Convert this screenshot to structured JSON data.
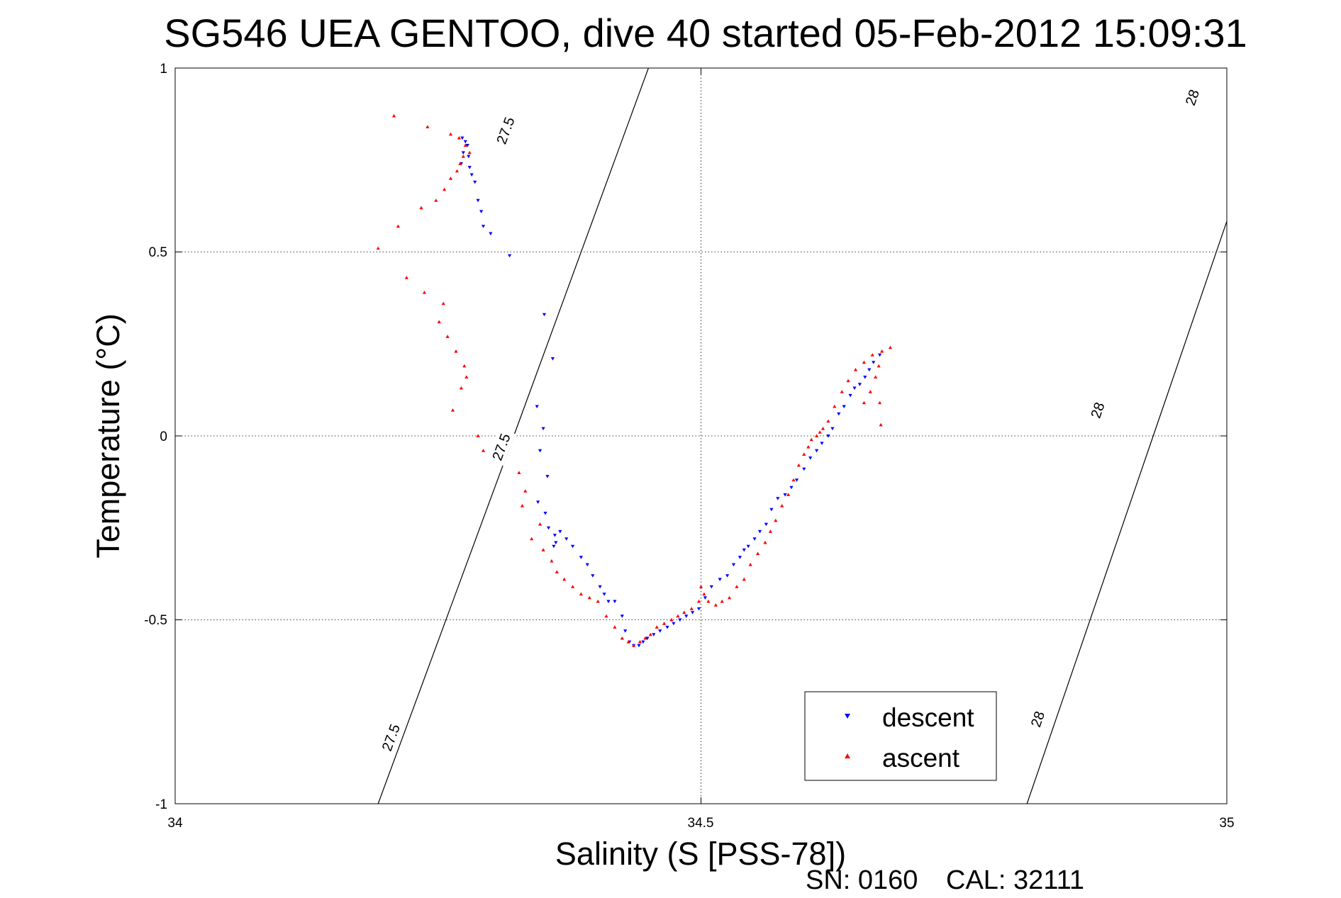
{
  "chart_data": {
    "type": "scatter",
    "title": "SG546 UEA GENTOO, dive 40 started 05-Feb-2012 15:09:31",
    "xlabel": "Salinity (S [PSS-78])",
    "ylabel": "Temperature (°C)",
    "xlim": [
      34,
      35
    ],
    "ylim": [
      -1,
      1
    ],
    "x_ticks": [
      34,
      34.5,
      35
    ],
    "x_tick_labels": [
      "34",
      "34.5",
      "35"
    ],
    "y_ticks": [
      1,
      0.5,
      0,
      -0.5,
      -1
    ],
    "y_tick_labels": [
      "1",
      "0.5",
      "0",
      "-0.5",
      "-1"
    ],
    "grid": true,
    "legend_position": "bottom-right",
    "legend": [
      {
        "label": "descent",
        "color": "#0000ff",
        "marker": "down-triangle"
      },
      {
        "label": "ascent",
        "color": "#ff0000",
        "marker": "up-triangle"
      }
    ],
    "contours": [
      {
        "level": "27.5",
        "points": [
          [
            34.193,
            -1.0
          ],
          [
            34.322,
            0.0
          ],
          [
            34.322,
            0.0
          ],
          [
            34.45,
            1.0
          ]
        ]
      },
      {
        "level": "28",
        "points": [
          [
            34.81,
            -1.0
          ],
          [
            34.93,
            0.0
          ],
          [
            34.93,
            0.0
          ],
          [
            35.05,
            1.0
          ]
        ]
      }
    ],
    "contour_labels": [
      {
        "text": "27.5",
        "s": 34.31,
        "t": -0.03
      },
      {
        "text": "27.5",
        "s": 34.314,
        "t": 0.83
      },
      {
        "text": "27.5",
        "s": 34.205,
        "t": -0.82
      },
      {
        "text": "28",
        "s": 34.877,
        "t": 0.07
      },
      {
        "text": "28",
        "s": 34.967,
        "t": 0.92
      },
      {
        "text": "28",
        "s": 34.82,
        "t": -0.77
      }
    ],
    "series": [
      {
        "name": "descent",
        "color": "#0000ff",
        "marker": "down-triangle",
        "x": [
          34.273,
          34.276,
          34.278,
          34.274,
          34.279,
          34.272,
          34.28,
          34.282,
          34.285,
          34.288,
          34.291,
          34.293,
          34.3,
          34.318,
          34.351,
          34.359,
          34.344,
          34.35,
          34.347,
          34.354,
          34.345,
          34.352,
          34.355,
          34.361,
          34.362,
          34.36,
          34.366,
          34.372,
          34.378,
          34.386,
          34.392,
          34.397,
          34.404,
          34.408,
          34.412,
          34.418,
          34.425,
          34.428,
          34.432,
          34.436,
          34.441,
          34.445,
          34.449,
          34.455,
          34.461,
          34.468,
          34.474,
          34.48,
          34.486,
          34.492,
          34.498,
          34.504,
          34.51,
          34.518,
          34.525,
          34.531,
          34.537,
          34.541,
          34.545,
          34.551,
          34.556,
          34.562,
          34.567,
          34.573,
          34.58,
          34.586,
          34.591,
          34.598,
          34.604,
          34.61,
          34.615,
          34.621,
          34.625,
          34.631,
          34.636,
          34.642,
          34.646,
          34.651,
          34.656,
          34.66,
          34.664,
          34.67
        ],
        "y": [
          0.81,
          0.8,
          0.79,
          0.77,
          0.76,
          0.74,
          0.73,
          0.71,
          0.69,
          0.64,
          0.61,
          0.57,
          0.55,
          0.49,
          0.33,
          0.21,
          0.08,
          0.02,
          -0.04,
          -0.11,
          -0.18,
          -0.21,
          -0.25,
          -0.27,
          -0.29,
          -0.3,
          -0.26,
          -0.28,
          -0.3,
          -0.33,
          -0.35,
          -0.38,
          -0.41,
          -0.43,
          -0.45,
          -0.45,
          -0.49,
          -0.53,
          -0.56,
          -0.57,
          -0.57,
          -0.56,
          -0.55,
          -0.54,
          -0.53,
          -0.52,
          -0.51,
          -0.5,
          -0.49,
          -0.48,
          -0.47,
          -0.44,
          -0.41,
          -0.39,
          -0.38,
          -0.35,
          -0.33,
          -0.31,
          -0.3,
          -0.28,
          -0.26,
          -0.24,
          -0.2,
          -0.17,
          -0.16,
          -0.14,
          -0.12,
          -0.09,
          -0.06,
          -0.04,
          -0.02,
          0.0,
          0.02,
          0.06,
          0.08,
          0.11,
          0.13,
          0.14,
          0.16,
          0.18,
          0.2,
          0.22
        ]
      },
      {
        "name": "ascent",
        "color": "#ff0000",
        "marker": "up-triangle",
        "x": [
          34.208,
          34.24,
          34.262,
          34.27,
          34.276,
          34.28,
          34.274,
          34.271,
          34.268,
          34.262,
          34.256,
          34.248,
          34.234,
          34.212,
          34.193,
          34.22,
          34.237,
          34.255,
          34.251,
          34.259,
          34.267,
          34.275,
          34.277,
          34.272,
          34.264,
          34.288,
          34.293,
          34.327,
          34.333,
          34.33,
          34.347,
          34.339,
          34.35,
          34.358,
          34.363,
          34.37,
          34.378,
          34.386,
          34.394,
          34.402,
          34.41,
          34.418,
          34.425,
          34.431,
          34.436,
          34.442,
          34.447,
          34.452,
          34.458,
          34.465,
          34.472,
          34.478,
          34.484,
          34.491,
          34.498,
          34.503,
          34.5,
          34.507,
          34.514,
          34.52,
          34.527,
          34.534,
          34.541,
          34.547,
          34.554,
          34.561,
          34.566,
          34.571,
          34.577,
          34.583,
          34.588,
          34.593,
          34.598,
          34.602,
          34.605,
          34.61,
          34.613,
          34.616,
          34.621,
          34.627,
          34.634,
          34.64,
          34.647,
          34.655,
          34.663,
          34.672,
          34.68,
          34.669,
          34.666,
          34.661,
          34.655,
          34.671,
          34.67
        ],
        "y": [
          0.87,
          0.84,
          0.82,
          0.81,
          0.79,
          0.77,
          0.76,
          0.74,
          0.72,
          0.7,
          0.67,
          0.64,
          0.62,
          0.57,
          0.51,
          0.43,
          0.39,
          0.36,
          0.31,
          0.27,
          0.23,
          0.19,
          0.16,
          0.13,
          0.07,
          0.0,
          -0.04,
          -0.1,
          -0.15,
          -0.19,
          -0.24,
          -0.28,
          -0.31,
          -0.34,
          -0.37,
          -0.39,
          -0.41,
          -0.43,
          -0.44,
          -0.45,
          -0.49,
          -0.52,
          -0.55,
          -0.56,
          -0.57,
          -0.56,
          -0.55,
          -0.54,
          -0.52,
          -0.51,
          -0.5,
          -0.49,
          -0.48,
          -0.47,
          -0.45,
          -0.43,
          -0.41,
          -0.45,
          -0.46,
          -0.45,
          -0.44,
          -0.41,
          -0.39,
          -0.35,
          -0.32,
          -0.29,
          -0.26,
          -0.23,
          -0.19,
          -0.16,
          -0.12,
          -0.08,
          -0.05,
          -0.03,
          -0.01,
          0.0,
          0.01,
          0.02,
          0.04,
          0.08,
          0.12,
          0.15,
          0.18,
          0.2,
          0.22,
          0.23,
          0.24,
          0.19,
          0.16,
          0.12,
          0.09,
          0.03,
          0.09
        ]
      }
    ]
  },
  "footer": {
    "serial": "SN: 0160",
    "calibration": "CAL: 32111"
  }
}
